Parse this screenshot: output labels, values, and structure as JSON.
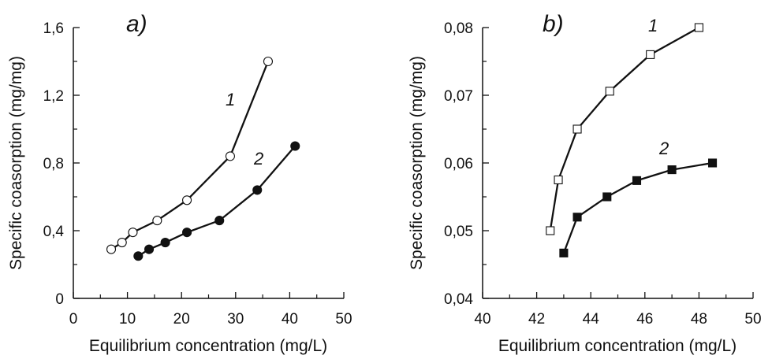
{
  "chart_data": [
    {
      "type": "line",
      "panel_label": "a)",
      "xlabel": "Equilibrium concentration (mg/L)",
      "ylabel": "Specific coasorption (mg/mg)",
      "xlim": [
        0,
        50
      ],
      "ylim": [
        0,
        1.6
      ],
      "xticks": [
        "0",
        "10",
        "20",
        "30",
        "40",
        "50"
      ],
      "yticks": [
        "0",
        "0,4",
        "0,8",
        "1,2",
        "1,6"
      ],
      "series": [
        {
          "name": "1",
          "marker": "open-circle",
          "x": [
            7,
            9,
            11,
            15.5,
            21,
            29,
            36
          ],
          "y": [
            0.29,
            0.33,
            0.39,
            0.46,
            0.58,
            0.84,
            1.4
          ]
        },
        {
          "name": "2",
          "marker": "filled-circle",
          "x": [
            12,
            14,
            17,
            21,
            27,
            34,
            41
          ],
          "y": [
            0.25,
            0.29,
            0.33,
            0.39,
            0.46,
            0.64,
            0.9
          ]
        }
      ]
    },
    {
      "type": "line",
      "panel_label": "b)",
      "xlabel": "Equilibrium concentration (mg/L)",
      "ylabel": "Specific coasorption (mg/mg)",
      "xlim": [
        40,
        50
      ],
      "ylim": [
        0.04,
        0.08
      ],
      "xticks": [
        "40",
        "42",
        "44",
        "46",
        "48",
        "50"
      ],
      "yticks": [
        "0,04",
        "0,05",
        "0,06",
        "0,07",
        "0,08"
      ],
      "series": [
        {
          "name": "1",
          "marker": "open-square",
          "x": [
            42.5,
            42.8,
            43.5,
            44.7,
            46.2,
            48.0
          ],
          "y": [
            0.05,
            0.0575,
            0.065,
            0.0706,
            0.076,
            0.08
          ]
        },
        {
          "name": "2",
          "marker": "filled-square",
          "x": [
            43.0,
            43.5,
            44.6,
            45.7,
            47.0,
            48.5
          ],
          "y": [
            0.0467,
            0.052,
            0.055,
            0.0574,
            0.059,
            0.06
          ]
        }
      ]
    }
  ]
}
